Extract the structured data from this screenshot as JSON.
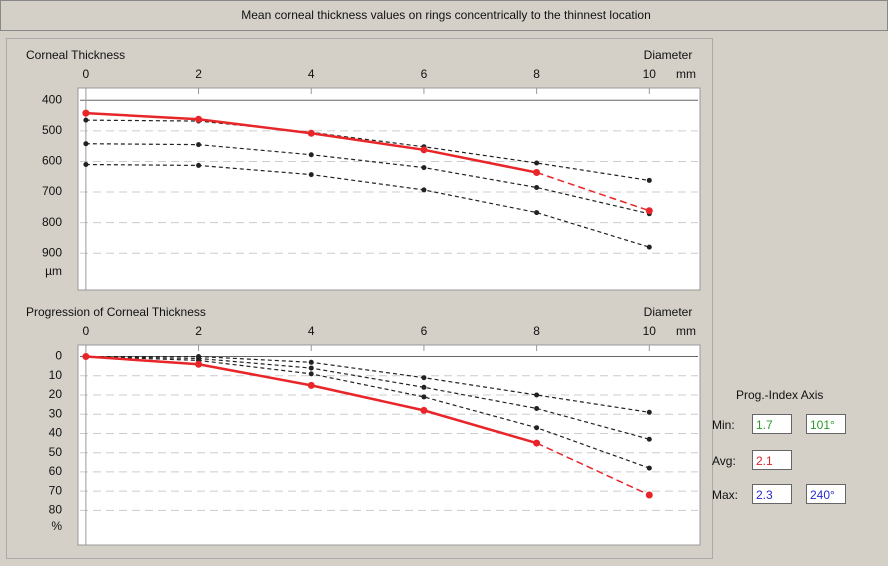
{
  "header": {
    "title": "Mean corneal thickness values on rings concentrically to the thinnest location"
  },
  "chart_data": [
    {
      "type": "line",
      "title": "Corneal Thickness",
      "x_label": "Diameter",
      "x_unit": "mm",
      "y_unit": "µm",
      "xlim": [
        -0.14,
        10.9
      ],
      "xticks": [
        0,
        2,
        4,
        6,
        8,
        10
      ],
      "ylim": [
        1020,
        360
      ],
      "yticks": [
        400,
        500,
        600,
        700,
        800,
        900
      ],
      "grid": true,
      "x": [
        0,
        2,
        4,
        6,
        8,
        10
      ],
      "series": [
        {
          "color": "#222222",
          "dashed": true,
          "values": [
            465,
            468,
            505,
            552,
            605,
            662
          ]
        },
        {
          "color": "#222222",
          "dashed": true,
          "values": [
            542,
            545,
            578,
            620,
            685,
            771
          ]
        },
        {
          "color": "#222222",
          "dashed": true,
          "values": [
            610,
            613,
            643,
            693,
            767,
            880
          ]
        },
        {
          "color": "#e8262a",
          "dashed": false,
          "values": [
            442,
            462,
            508,
            562,
            636,
            761
          ]
        }
      ]
    },
    {
      "type": "line",
      "title": "Progression of Corneal Thickness",
      "x_label": "Diameter",
      "x_unit": "mm",
      "y_unit": "%",
      "xlim": [
        -0.14,
        10.9
      ],
      "xticks": [
        0,
        2,
        4,
        6,
        8,
        10
      ],
      "ylim": [
        98,
        -6
      ],
      "yticks": [
        0,
        10,
        20,
        30,
        40,
        50,
        60,
        70,
        80
      ],
      "grid": true,
      "x": [
        0,
        2,
        4,
        6,
        8,
        10
      ],
      "series": [
        {
          "color": "#222222",
          "dashed": true,
          "values": [
            0,
            0,
            3,
            11,
            20,
            29
          ]
        },
        {
          "color": "#222222",
          "dashed": true,
          "values": [
            0,
            1,
            6,
            16,
            27,
            43
          ]
        },
        {
          "color": "#222222",
          "dashed": true,
          "values": [
            0,
            2,
            9,
            21,
            37,
            58
          ]
        },
        {
          "color": "#e8262a",
          "dashed": false,
          "values": [
            0,
            4,
            15,
            28,
            45,
            72
          ]
        }
      ]
    }
  ],
  "prog_index": {
    "title": "Prog.-Index Axis",
    "min_label": "Min:",
    "min_value": "1.7",
    "min_axis": "101°",
    "avg_label": "Avg:",
    "avg_value": "2.1",
    "max_label": "Max:",
    "max_value": "2.3",
    "max_axis": "240°"
  }
}
